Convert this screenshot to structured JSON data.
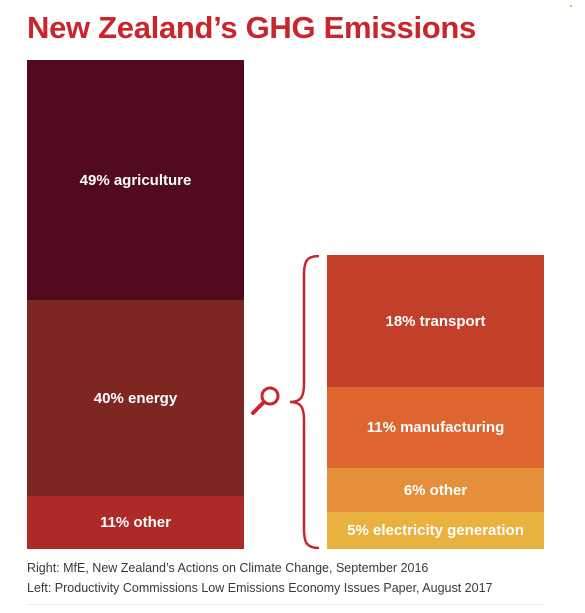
{
  "title": "New Zealand’s GHG Emissions",
  "colors": {
    "title": "#c8262c",
    "agriculture": "#520a1f",
    "energy": "#7e2622",
    "other_left": "#ad2a26",
    "transport": "#c2402a",
    "manufacturing": "#de6530",
    "other_right": "#e58f3a",
    "electricity": "#e9b13d",
    "bracket": "#c8262c"
  },
  "icons": {
    "magnifier": "magnifier-icon",
    "bracket": "curly-bracket-icon"
  },
  "chart_data": [
    {
      "type": "bar",
      "stacked": true,
      "categories": [
        "agriculture",
        "energy",
        "other"
      ],
      "values": [
        49,
        40,
        11
      ],
      "unit": "%",
      "labels": [
        "49% agriculture",
        "40% energy",
        "11% other"
      ]
    },
    {
      "type": "bar",
      "stacked": true,
      "categories": [
        "transport",
        "manufacturing",
        "other",
        "electricity generation"
      ],
      "values": [
        18,
        11,
        6,
        5
      ],
      "unit": "%",
      "labels": [
        "18% transport",
        "11% manufacturing",
        "6% other",
        "5% electricity generation"
      ]
    }
  ],
  "sources": {
    "right": "Right: MfE, New Zealand’s Actions on Climate Change, September 2016",
    "left": "Left: Productivity Commissions Low Emissions Economy Issues Paper, August 2017"
  }
}
